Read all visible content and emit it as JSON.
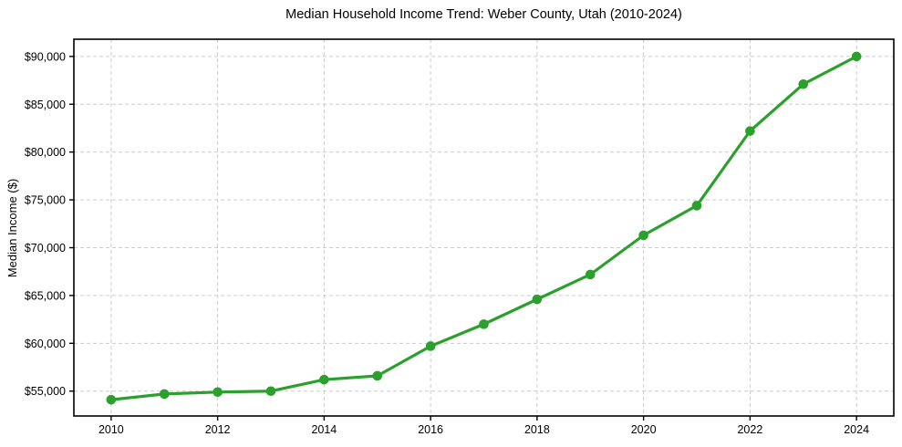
{
  "chart_data": {
    "type": "line",
    "title": "Median Household Income Trend: Weber County, Utah (2010-2024)",
    "xlabel": "",
    "ylabel": "Median Income ($)",
    "x": [
      2010,
      2011,
      2012,
      2013,
      2014,
      2015,
      2016,
      2017,
      2018,
      2019,
      2020,
      2021,
      2022,
      2023,
      2024
    ],
    "values": [
      54100,
      54700,
      54900,
      55000,
      56200,
      56600,
      59700,
      62000,
      64600,
      67200,
      71300,
      74400,
      82200,
      87100,
      90000
    ],
    "line_color": "#2ca02c",
    "marker": "circle",
    "xticks": {
      "values": [
        2010,
        2012,
        2014,
        2016,
        2018,
        2020,
        2022,
        2024
      ],
      "labels": [
        "2010",
        "2012",
        "2014",
        "2016",
        "2018",
        "2020",
        "2022",
        "2024"
      ]
    },
    "yticks": {
      "values": [
        55000,
        60000,
        65000,
        70000,
        75000,
        80000,
        85000,
        90000
      ],
      "labels": [
        "$55,000",
        "$60,000",
        "$65,000",
        "$70,000",
        "$75,000",
        "$80,000",
        "$85,000",
        "$90,000"
      ]
    },
    "xlim": [
      2009.3,
      2024.7
    ],
    "ylim": [
      52400,
      91800
    ],
    "grid": {
      "show": true,
      "line_style": "dashed",
      "color": "#cccccc"
    },
    "axis_color": "#000000",
    "tick_label_color": "#000000",
    "legend": {
      "show": false
    }
  }
}
